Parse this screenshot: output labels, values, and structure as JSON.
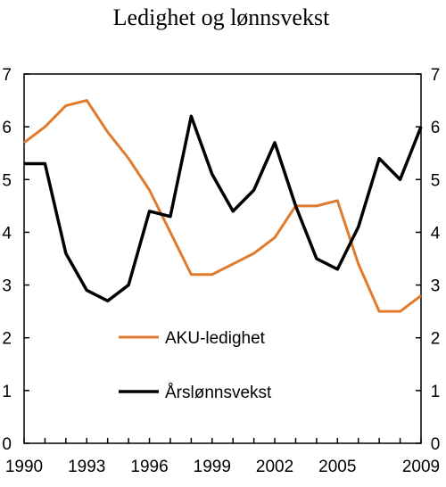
{
  "chart_data": {
    "type": "line",
    "title": "Ledighet og lønnsvekst",
    "xlabel": "",
    "ylabel": "",
    "x": [
      1990,
      1991,
      1992,
      1993,
      1994,
      1995,
      1996,
      1997,
      1998,
      1999,
      2000,
      2001,
      2002,
      2003,
      2004,
      2005,
      2006,
      2007,
      2008,
      2009
    ],
    "x_ticks": [
      "1990",
      "1993",
      "1996",
      "1999",
      "2002",
      "2005",
      "2009"
    ],
    "x_tick_values": [
      1990,
      1993,
      1996,
      1999,
      2002,
      2005,
      2009
    ],
    "xlim": [
      1990,
      2009
    ],
    "ylim": [
      0,
      7
    ],
    "y_ticks": [
      "0",
      "1",
      "2",
      "3",
      "4",
      "5",
      "6",
      "7"
    ],
    "y_ticks_right": [
      "0",
      "1",
      "2",
      "3",
      "4",
      "5",
      "6",
      "7"
    ],
    "grid": false,
    "legend_position": "bottom-left",
    "series": [
      {
        "name": "AKU-ledighet",
        "color": "#E07B2E",
        "values": [
          5.7,
          6.0,
          6.4,
          6.5,
          5.9,
          5.4,
          4.8,
          4.0,
          3.2,
          3.2,
          3.4,
          3.6,
          3.9,
          4.5,
          4.5,
          4.6,
          3.4,
          2.5,
          2.5,
          2.8
        ]
      },
      {
        "name": "Årslønnsvekst",
        "color": "#000000",
        "values": [
          5.3,
          5.3,
          3.6,
          2.9,
          2.7,
          3.0,
          4.4,
          4.3,
          6.2,
          5.1,
          4.4,
          4.8,
          5.7,
          4.5,
          3.5,
          3.3,
          4.1,
          5.4,
          5.0,
          6.0
        ]
      }
    ]
  }
}
